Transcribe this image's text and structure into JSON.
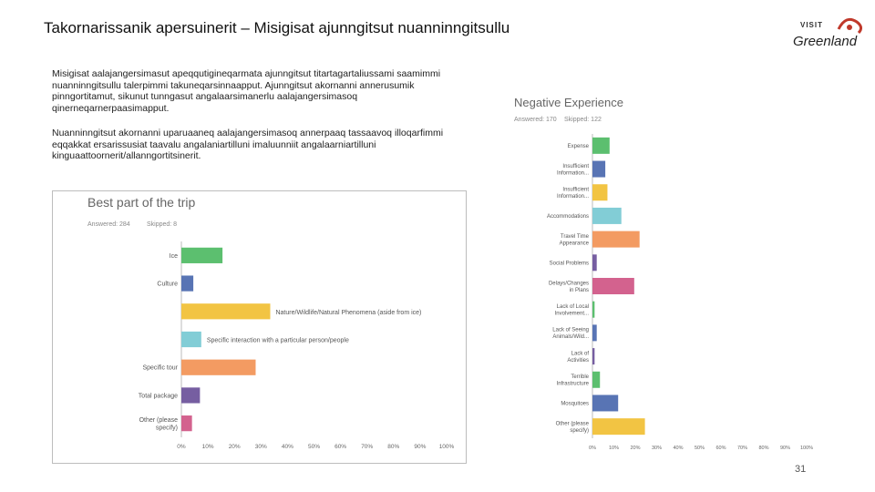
{
  "slide": {
    "title": "Takornarissanik apersuinerit – Misigisat ajunngitsut nuanninngitsullu",
    "logo_top": "VISIT",
    "logo_bottom": "Greenland",
    "paragraph1": "Misigisat aalajangersimasut apeqqutigineqarmata ajunngitsut titartagartaliussami saamimmi nuanninngitsullu talerpimmi takuneqarsinnaapput. Ajunngitsut akornanni annerusumik pinngortitamut, sikunut tunngasut angalaarsimanerlu aalajangersimasoq qinerneqarnerpaasimapput.",
    "paragraph2": "Nuanninngitsut akornanni uparuaaneq aalajangersimasoq annerpaaq tassaavoq illoqarfimmi eqqakkat ersarissusiat taavalu angalaniartilluni imaluunniit angalaarniartilluni kinguaattoornerit/allanngortitsinerit.",
    "page_number": "31"
  },
  "chart_data": [
    {
      "type": "bar",
      "orientation": "horizontal",
      "title": "Best part of the trip",
      "answered_label": "Answered: 284",
      "skipped_label": "Skipped: 8",
      "categories": [
        "Ice",
        "Culture",
        "Nature/Wildlife/Natural Phenomena (aside from ice)",
        "Specific interaction with a particular person/people",
        "Specific tour",
        "Total package",
        "Other (please specify)"
      ],
      "label_side": [
        "left",
        "left",
        "right",
        "right",
        "left",
        "left",
        "left"
      ],
      "values": [
        15.5,
        4.5,
        33.5,
        7.5,
        28.0,
        7.0,
        4.0
      ],
      "colors": [
        "#5cbf6f",
        "#5874b4",
        "#f2c443",
        "#82cdd6",
        "#f39b62",
        "#765ea1",
        "#d3628e"
      ],
      "xticks": [
        "0%",
        "10%",
        "20%",
        "30%",
        "40%",
        "50%",
        "60%",
        "70%",
        "80%",
        "90%",
        "100%"
      ],
      "xlim": [
        0,
        100
      ]
    },
    {
      "type": "bar",
      "orientation": "horizontal",
      "title": "Negative Experience",
      "answered_label": "Answered: 170",
      "skipped_label": "Skipped: 122",
      "categories": [
        "Expense",
        "Insufficient Information...",
        "Insufficient Information...",
        "Accommodations",
        "Travel Time Appearance",
        "Social Problems",
        "Delays/Changes in Plans",
        "Lack of Local Involvement...",
        "Lack of Seeing Animals/Wild...",
        "Lack of Activities",
        "Terrible Infrastructure",
        "Mosquitoes",
        "Other (please specify)"
      ],
      "values": [
        8.0,
        6.0,
        7.0,
        13.5,
        22.0,
        2.0,
        19.5,
        1.0,
        2.0,
        1.0,
        3.5,
        12.0,
        24.5
      ],
      "colors": [
        "#5cbf6f",
        "#5874b4",
        "#f2c443",
        "#82cdd6",
        "#f39b62",
        "#765ea1",
        "#d3628e",
        "#5cbf6f",
        "#5874b4",
        "#765ea1",
        "#5cbf6f",
        "#5874b4",
        "#f2c443"
      ],
      "xticks": [
        "0%",
        "10%",
        "20%",
        "30%",
        "40%",
        "50%",
        "60%",
        "70%",
        "80%",
        "90%",
        "100%"
      ],
      "xlim": [
        0,
        100
      ]
    }
  ]
}
